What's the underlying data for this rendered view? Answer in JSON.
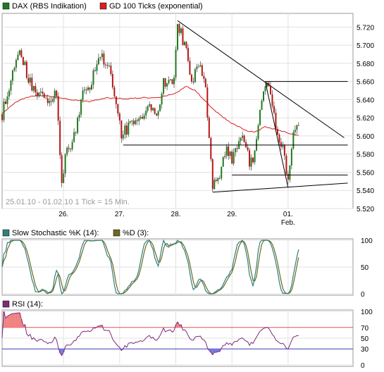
{
  "chart_data": [
    {
      "type": "candlestick",
      "legend": [
        {
          "name": "DAX (RBS Indikation)",
          "color": "#1f7a1f"
        },
        {
          "name": "GD 100 Ticks (exponential)",
          "color": "#d81e1e"
        }
      ],
      "annotation": "25.01.10 - 01.02.10  1 Tick = 15 Min.",
      "ylim": [
        5520,
        5735
      ],
      "y_ticks": [
        "5.720",
        "5.700",
        "5.680",
        "5.660",
        "5.640",
        "5.620",
        "5.600",
        "5.580",
        "5.560",
        "5.540",
        "5.520"
      ],
      "y_tick_values": [
        5720,
        5700,
        5680,
        5660,
        5640,
        5620,
        5600,
        5580,
        5560,
        5540,
        5520
      ],
      "x_ticks": [
        "26.",
        "27.",
        "28.",
        "29.",
        "01."
      ],
      "x_tick_positions": [
        35,
        67,
        99,
        131,
        163
      ],
      "x_sub_label": "Feb.",
      "n_ticks": 170,
      "price_path": [
        [
          0,
          5624
        ],
        [
          5,
          5660
        ],
        [
          10,
          5700
        ],
        [
          15,
          5660
        ],
        [
          20,
          5648
        ],
        [
          26,
          5643
        ],
        [
          31,
          5643
        ],
        [
          34,
          5550
        ],
        [
          37,
          5585
        ],
        [
          41,
          5598
        ],
        [
          46,
          5650
        ],
        [
          51,
          5660
        ],
        [
          56,
          5690
        ],
        [
          62,
          5670
        ],
        [
          68,
          5600
        ],
        [
          72,
          5610
        ],
        [
          78,
          5620
        ],
        [
          83,
          5630
        ],
        [
          88,
          5620
        ],
        [
          92,
          5660
        ],
        [
          98,
          5660
        ],
        [
          100,
          5727
        ],
        [
          104,
          5700
        ],
        [
          108,
          5660
        ],
        [
          113,
          5680
        ],
        [
          116,
          5650
        ],
        [
          118,
          5600
        ],
        [
          120,
          5540
        ],
        [
          124,
          5560
        ],
        [
          127,
          5585
        ],
        [
          131,
          5575
        ],
        [
          134,
          5585
        ],
        [
          138,
          5598
        ],
        [
          141,
          5570
        ],
        [
          144,
          5580
        ],
        [
          148,
          5640
        ],
        [
          151,
          5660
        ],
        [
          153,
          5650
        ],
        [
          156,
          5608
        ],
        [
          160,
          5590
        ],
        [
          163,
          5545
        ],
        [
          166,
          5600
        ],
        [
          169,
          5610
        ]
      ],
      "ema_path": [
        [
          0,
          5625
        ],
        [
          10,
          5640
        ],
        [
          20,
          5645
        ],
        [
          30,
          5643
        ],
        [
          40,
          5640
        ],
        [
          50,
          5638
        ],
        [
          60,
          5642
        ],
        [
          70,
          5641
        ],
        [
          80,
          5642
        ],
        [
          90,
          5642
        ],
        [
          100,
          5648
        ],
        [
          105,
          5655
        ],
        [
          110,
          5650
        ],
        [
          115,
          5640
        ],
        [
          120,
          5630
        ],
        [
          125,
          5622
        ],
        [
          130,
          5615
        ],
        [
          135,
          5610
        ],
        [
          140,
          5605
        ],
        [
          145,
          5605
        ],
        [
          150,
          5610
        ],
        [
          160,
          5605
        ],
        [
          169,
          5600
        ]
      ],
      "trend_lines": [
        {
          "from": [
            100,
            5727
          ],
          "to": [
            195,
            5598
          ]
        },
        {
          "from": [
            120,
            5538
          ],
          "to": [
            197,
            5548
          ]
        },
        {
          "from": [
            69,
            5590
          ],
          "to": [
            197,
            5590
          ]
        },
        {
          "from": [
            150,
            5660
          ],
          "to": [
            197,
            5660
          ]
        },
        {
          "from": [
            131,
            5557
          ],
          "to": [
            197,
            5557
          ]
        },
        {
          "from": [
            150,
            5660
          ],
          "to": [
            163,
            5543
          ]
        }
      ]
    },
    {
      "type": "line",
      "legend": [
        {
          "name": "Slow Stochastic %K (14):",
          "color": "#2f7f7f"
        },
        {
          "name": "%D (3):",
          "color": "#6b6b1f"
        }
      ],
      "ylim": [
        0,
        100
      ],
      "y_ticks": [
        "100",
        "50",
        "0"
      ],
      "y_tick_values": [
        100,
        50,
        0
      ]
    },
    {
      "type": "line",
      "legend": [
        {
          "name": "RSI (14):",
          "color": "#7d2b7d"
        }
      ],
      "ylim": [
        0,
        100
      ],
      "y_ticks": [
        "100",
        "70",
        "50",
        "30",
        "0"
      ],
      "y_tick_values": [
        100,
        70,
        50,
        30,
        0
      ],
      "upper_band": 70,
      "lower_band": 30
    }
  ]
}
